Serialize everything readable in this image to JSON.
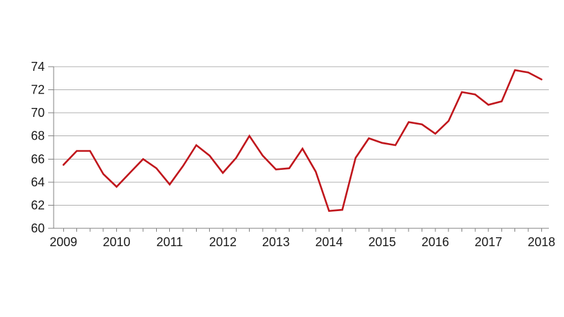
{
  "colors": {
    "background": "#ffffff",
    "line": "#c0161c",
    "grid": "#b0b0b0",
    "axis": "#808080",
    "text": "#1a1a1a"
  },
  "chart_data": {
    "type": "line",
    "title": "",
    "xlabel": "",
    "ylabel": "",
    "legend_position": "none",
    "grid": true,
    "ylim": [
      60,
      74
    ],
    "y_ticks": [
      60,
      62,
      64,
      66,
      68,
      70,
      72,
      74
    ],
    "y_tick_labels": [
      "60",
      "62",
      "64",
      "66",
      "68",
      "70",
      "72",
      "74"
    ],
    "x_tick_labels": [
      "2009",
      "2010",
      "2011",
      "2012",
      "2013",
      "2014",
      "2015",
      "2016",
      "2017",
      "2018"
    ],
    "x_unit": "quarterly, 2009 Q1 through 2018 Q1, minor tick each quarter",
    "series": [
      {
        "name": "series-1",
        "color": "#c0161c",
        "x": [
          2009.0,
          2009.25,
          2009.5,
          2009.75,
          2010.0,
          2010.25,
          2010.5,
          2010.75,
          2011.0,
          2011.25,
          2011.5,
          2011.75,
          2012.0,
          2012.25,
          2012.5,
          2012.75,
          2013.0,
          2013.25,
          2013.5,
          2013.75,
          2014.0,
          2014.25,
          2014.5,
          2014.75,
          2015.0,
          2015.25,
          2015.5,
          2015.75,
          2016.0,
          2016.25,
          2016.5,
          2016.75,
          2017.0,
          2017.25,
          2017.5,
          2017.75,
          2018.0
        ],
        "values": [
          65.5,
          66.7,
          66.7,
          64.7,
          63.6,
          64.8,
          66.0,
          65.2,
          63.8,
          65.4,
          67.2,
          66.3,
          64.8,
          66.1,
          68.0,
          66.3,
          65.1,
          65.2,
          66.9,
          64.9,
          61.5,
          61.6,
          66.1,
          67.8,
          67.4,
          67.2,
          69.2,
          69.0,
          68.2,
          69.3,
          71.8,
          71.6,
          70.7,
          71.0,
          73.7,
          73.5,
          72.9
        ]
      }
    ]
  }
}
